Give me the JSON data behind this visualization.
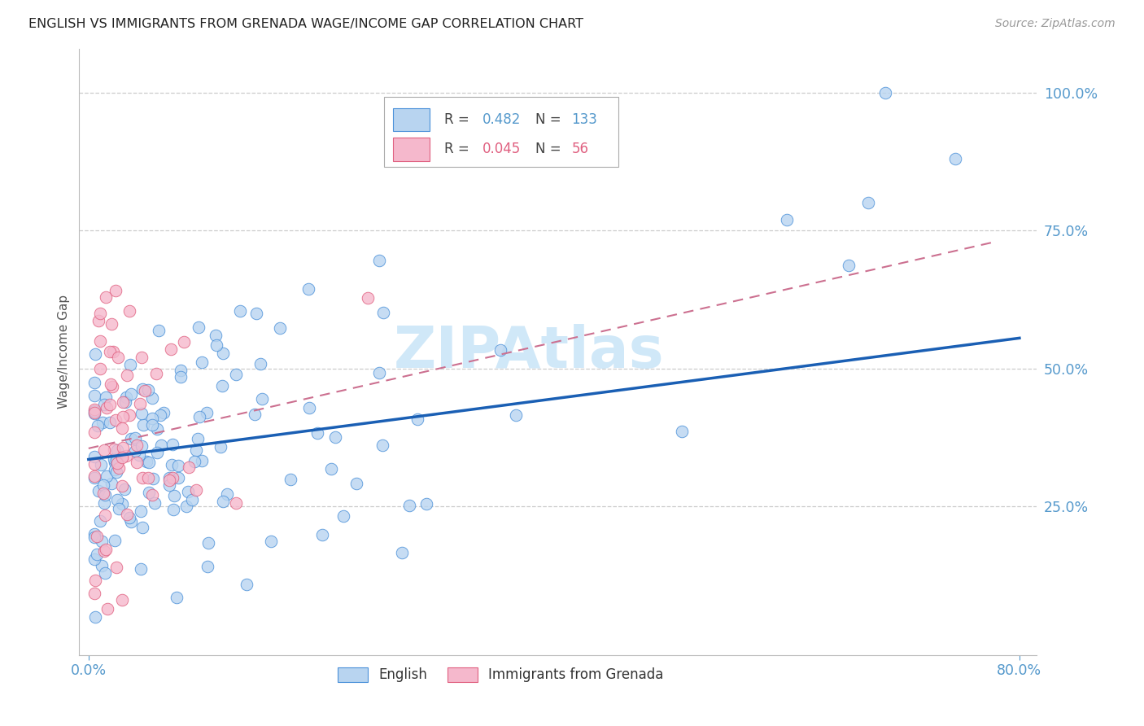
{
  "title": "ENGLISH VS IMMIGRANTS FROM GRENADA WAGE/INCOME GAP CORRELATION CHART",
  "source": "Source: ZipAtlas.com",
  "ylabel": "Wage/Income Gap",
  "english_color": "#b8d4f0",
  "english_edge_color": "#4a90d9",
  "grenada_color": "#f5b8cc",
  "grenada_edge_color": "#e06080",
  "english_line_color": "#1a5fb4",
  "grenada_line_color": "#cc7090",
  "grid_color": "#cccccc",
  "tick_color": "#5599cc",
  "ylabel_color": "#555555",
  "title_color": "#222222",
  "source_color": "#999999",
  "watermark_color": "#d0e8f8",
  "legend_r1_label": "R = ",
  "legend_r1_val": "0.482",
  "legend_n1_label": "N = ",
  "legend_n1_val": "133",
  "legend_r2_label": "R = ",
  "legend_r2_val": "0.045",
  "legend_n2_label": "N =  ",
  "legend_n2_val": "56",
  "xmin": 0.0,
  "xmax": 0.8,
  "ymin": -0.02,
  "ymax": 1.08,
  "yticks": [
    0.25,
    0.5,
    0.75,
    1.0
  ],
  "ytick_labels": [
    "25.0%",
    "50.0%",
    "75.0%",
    "100.0%"
  ],
  "eng_line_x0": 0.0,
  "eng_line_x1": 0.8,
  "eng_line_y0": 0.335,
  "eng_line_y1": 0.555,
  "gren_line_x0": 0.0,
  "gren_line_x1": 0.78,
  "gren_line_y0": 0.355,
  "gren_line_y1": 0.73
}
